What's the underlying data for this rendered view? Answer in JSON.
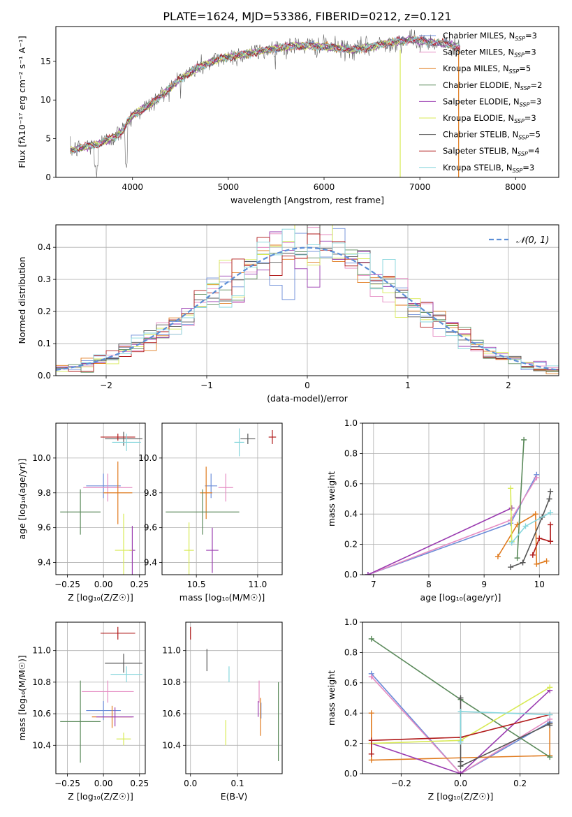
{
  "figure_title": "PLATE=1624, MJD=53386, FIBERID=0212, z=0.121",
  "models": [
    {
      "key": "CM",
      "label": "Chabrier MILES, N",
      "sub": "SSP",
      "suffix": "=3",
      "color": "#6b8cd8"
    },
    {
      "key": "SM",
      "label": "Salpeter MILES, N",
      "sub": "SSP",
      "suffix": "=3",
      "color": "#e58bc2"
    },
    {
      "key": "KM",
      "label": "Kroupa MILES, N",
      "sub": "SSP",
      "suffix": "=5",
      "color": "#e07b1f"
    },
    {
      "key": "CE",
      "label": "Chabrier ELODIE, N",
      "sub": "SSP",
      "suffix": "=2",
      "color": "#5b8a5b"
    },
    {
      "key": "SE",
      "label": "Salpeter ELODIE, N",
      "sub": "SSP",
      "suffix": "=3",
      "color": "#9a3bb0"
    },
    {
      "key": "KE",
      "label": "Kroupa ELODIE, N",
      "sub": "SSP",
      "suffix": "=3",
      "color": "#d8ea55"
    },
    {
      "key": "CS",
      "label": "Chabrier STELIB, N",
      "sub": "SSP",
      "suffix": "=5",
      "color": "#555555"
    },
    {
      "key": "SS",
      "label": "Salpeter STELIB, N",
      "sub": "SSP",
      "suffix": "=4",
      "color": "#b01a1a"
    },
    {
      "key": "KS",
      "label": "Kroupa STELIB, N",
      "sub": "SSP",
      "suffix": "=3",
      "color": "#86d6dc"
    }
  ],
  "chart_data": [
    {
      "id": "spectrum",
      "type": "line",
      "xlabel": "wavelength [Angstrom, rest frame]",
      "ylabel": "Flux [fλ10⁻¹⁷ erg cm⁻² s⁻¹ A⁻¹]",
      "xlim": [
        3200,
        8450
      ],
      "ylim": [
        0,
        19.5
      ],
      "xticks": [
        4000,
        5000,
        6000,
        7000,
        8000
      ],
      "yticks": [
        0,
        5,
        10,
        15
      ],
      "continuum": {
        "x": [
          3350,
          3500,
          3650,
          3800,
          3900,
          3950,
          4000,
          4100,
          4200,
          4300,
          4400,
          4500,
          4700,
          4900,
          5100,
          5300,
          5500,
          5700,
          5900,
          6100,
          6300,
          6500,
          6700,
          6900,
          7100,
          7300,
          7420
        ],
        "y": [
          3.5,
          3.9,
          4.3,
          5.2,
          6.0,
          7.2,
          8.0,
          8.8,
          9.5,
          10.6,
          11.6,
          12.8,
          14.3,
          15.3,
          15.8,
          16.2,
          16.7,
          17.0,
          17.0,
          16.8,
          16.5,
          16.9,
          17.5,
          17.8,
          17.5,
          17.2,
          16.8
        ]
      },
      "dropouts": [
        {
          "x": 6795,
          "color": "#d8ea55"
        },
        {
          "x": 7405,
          "color": "#e07b1f"
        }
      ]
    },
    {
      "id": "residuals",
      "type": "histogram",
      "xlabel": "(data-model)/error",
      "ylabel": "Normed distribution",
      "xlim": [
        -2.5,
        2.5
      ],
      "ylim": [
        0,
        0.47
      ],
      "xticks": [
        -2,
        -1,
        0,
        1,
        2
      ],
      "yticks": [
        0.0,
        0.1,
        0.2,
        0.3,
        0.4
      ],
      "bins": 40,
      "gaussian_label": "𝒩(0, 1)",
      "gaussian_color": "#5b8ed6"
    },
    {
      "id": "age_vs_Z",
      "type": "scatter",
      "xlabel": "Z [log₁₀(Z/Z☉)]",
      "ylabel": "age  [log₁₀(age/yr)]",
      "xlim": [
        -0.33,
        0.29
      ],
      "ylim": [
        9.33,
        10.2
      ],
      "xticks": [
        -0.25,
        0.0,
        0.25
      ],
      "xticklabels": [
        "−0.25",
        "0.00",
        "0.25"
      ],
      "yticks": [
        9.4,
        9.6,
        9.8,
        10.0
      ],
      "points": [
        {
          "m": "CM",
          "x": 0.0,
          "y": 9.84,
          "xerr": 0.12,
          "yerr": 0.07
        },
        {
          "m": "SM",
          "x": 0.03,
          "y": 9.83,
          "xerr": 0.17,
          "yerr": 0.08
        },
        {
          "m": "KM",
          "x": 0.1,
          "y": 9.8,
          "xerr": 0.1,
          "yerr": 0.18
        },
        {
          "m": "CE",
          "x": -0.16,
          "y": 9.69,
          "xerr": 0.14,
          "yerr": 0.13
        },
        {
          "m": "SE",
          "x": 0.2,
          "y": 9.47,
          "xerr": 0.02,
          "yerr": 0.14
        },
        {
          "m": "KE",
          "x": 0.14,
          "y": 9.47,
          "xerr": 0.06,
          "yerr": 0.21
        },
        {
          "m": "CS",
          "x": 0.14,
          "y": 10.11,
          "xerr": 0.13,
          "yerr": 0.04
        },
        {
          "m": "SS",
          "x": 0.1,
          "y": 10.12,
          "xerr": 0.12,
          "yerr": 0.02
        },
        {
          "m": "KS",
          "x": 0.16,
          "y": 10.09,
          "xerr": 0.1,
          "yerr": 0.05
        }
      ]
    },
    {
      "id": "age_vs_mass",
      "type": "scatter",
      "xlabel": "mass [log₁₀(M/M☉)]",
      "ylabel": "",
      "xlim": [
        10.22,
        11.2
      ],
      "ylim": [
        9.33,
        10.2
      ],
      "xticks": [
        10.5,
        11.0
      ],
      "xticklabels": [
        "10.5",
        "11.0"
      ],
      "yticks": [
        9.4,
        9.6,
        9.8,
        10.0
      ],
      "points": [
        {
          "m": "CM",
          "x": 10.62,
          "y": 9.84,
          "xerr": 0.05,
          "yerr": 0.07
        },
        {
          "m": "SM",
          "x": 10.74,
          "y": 9.83,
          "xerr": 0.06,
          "yerr": 0.08
        },
        {
          "m": "KM",
          "x": 10.58,
          "y": 9.8,
          "xerr": 0.05,
          "yerr": 0.15
        },
        {
          "m": "CE",
          "x": 10.55,
          "y": 9.69,
          "xerr": 0.3,
          "yerr": 0.13
        },
        {
          "m": "SE",
          "x": 10.63,
          "y": 9.47,
          "xerr": 0.05,
          "yerr": 0.13
        },
        {
          "m": "KE",
          "x": 10.44,
          "y": 9.47,
          "xerr": 0.04,
          "yerr": 0.16
        },
        {
          "m": "CS",
          "x": 10.92,
          "y": 10.11,
          "xerr": 0.06,
          "yerr": 0.03
        },
        {
          "m": "SS",
          "x": 11.12,
          "y": 10.12,
          "xerr": 0.03,
          "yerr": 0.04
        },
        {
          "m": "KS",
          "x": 10.85,
          "y": 10.09,
          "xerr": 0.04,
          "yerr": 0.08
        }
      ]
    },
    {
      "id": "weight_vs_age",
      "type": "line",
      "xlabel": "age  [log₁₀(age/yr)]",
      "ylabel": "mass weight",
      "xlim": [
        6.8,
        10.35
      ],
      "ylim": [
        0,
        1.0
      ],
      "xticks": [
        7,
        8,
        9,
        10
      ],
      "yticks": [
        0.0,
        0.2,
        0.4,
        0.6,
        0.8,
        1.0
      ],
      "series": [
        {
          "m": "CM",
          "x": [
            6.9,
            9.48,
            9.95
          ],
          "y": [
            0.0,
            0.34,
            0.66
          ]
        },
        {
          "m": "SM",
          "x": [
            6.9,
            9.48,
            9.95
          ],
          "y": [
            0.0,
            0.36,
            0.64
          ]
        },
        {
          "m": "KM",
          "x": [
            9.25,
            9.6,
            9.93,
            9.95,
            10.13
          ],
          "y": [
            0.12,
            0.33,
            0.4,
            0.07,
            0.09
          ]
        },
        {
          "m": "CE",
          "x": [
            9.6,
            9.72
          ],
          "y": [
            0.11,
            0.89
          ]
        },
        {
          "m": "SE",
          "x": [
            6.9,
            9.5
          ],
          "y": [
            0.0,
            0.44
          ]
        },
        {
          "m": "KE",
          "x": [
            9.48,
            9.5
          ],
          "y": [
            0.57,
            0.22
          ]
        },
        {
          "m": "CS",
          "x": [
            9.48,
            9.7,
            10.05,
            10.18,
            10.2
          ],
          "y": [
            0.05,
            0.08,
            0.38,
            0.5,
            0.55
          ]
        },
        {
          "m": "SS",
          "x": [
            9.88,
            10.0,
            10.2,
            10.2
          ],
          "y": [
            0.13,
            0.24,
            0.22,
            0.33
          ]
        },
        {
          "m": "KS",
          "x": [
            9.5,
            9.75,
            10.2
          ],
          "y": [
            0.21,
            0.32,
            0.41
          ]
        }
      ]
    },
    {
      "id": "mass_vs_Z",
      "type": "scatter",
      "xlabel": "Z [log₁₀(Z/Z☉)]",
      "ylabel": "mass [log₁₀(M/M☉)]",
      "xlim": [
        -0.33,
        0.29
      ],
      "ylim": [
        10.22,
        11.18
      ],
      "xticks": [
        -0.25,
        0.0,
        0.25
      ],
      "xticklabels": [
        "−0.25",
        "0.00",
        "0.25"
      ],
      "yticks": [
        10.4,
        10.6,
        10.8,
        11.0
      ],
      "points": [
        {
          "m": "CM",
          "x": 0.0,
          "y": 10.62,
          "xerr": 0.12,
          "yerr": 0.06
        },
        {
          "m": "SM",
          "x": 0.03,
          "y": 10.74,
          "xerr": 0.18,
          "yerr": 0.07
        },
        {
          "m": "KM",
          "x": 0.06,
          "y": 10.58,
          "xerr": 0.14,
          "yerr": 0.07
        },
        {
          "m": "CE",
          "x": -0.16,
          "y": 10.55,
          "xerr": 0.14,
          "yerr": 0.26
        },
        {
          "m": "SE",
          "x": 0.08,
          "y": 10.58,
          "xerr": 0.13,
          "yerr": 0.06
        },
        {
          "m": "KE",
          "x": 0.14,
          "y": 10.44,
          "xerr": 0.05,
          "yerr": 0.04
        },
        {
          "m": "CS",
          "x": 0.14,
          "y": 10.92,
          "xerr": 0.13,
          "yerr": 0.06
        },
        {
          "m": "SS",
          "x": 0.1,
          "y": 11.11,
          "xerr": 0.12,
          "yerr": 0.04
        },
        {
          "m": "KS",
          "x": 0.16,
          "y": 10.85,
          "xerr": 0.11,
          "yerr": 0.05
        }
      ]
    },
    {
      "id": "mass_vs_ebv",
      "type": "scatter",
      "xlabel": "E(B-V)",
      "ylabel": "",
      "xlim": [
        -0.01,
        0.195
      ],
      "ylim": [
        10.22,
        11.18
      ],
      "xticks": [
        0.0,
        0.1
      ],
      "xticklabels": [
        "0.0",
        "0.1"
      ],
      "yticks": [
        10.4,
        10.6,
        10.8,
        11.0
      ],
      "points": [
        {
          "m": "CM",
          "x": 0.15,
          "y": 10.62,
          "xerr": 0.0,
          "yerr": 0.05
        },
        {
          "m": "SM",
          "x": 0.146,
          "y": 10.74,
          "xerr": 0.0,
          "yerr": 0.07
        },
        {
          "m": "KM",
          "x": 0.149,
          "y": 10.58,
          "xerr": 0.0,
          "yerr": 0.12
        },
        {
          "m": "CE",
          "x": 0.187,
          "y": 10.55,
          "xerr": 0.0,
          "yerr": 0.25
        },
        {
          "m": "SE",
          "x": 0.144,
          "y": 10.63,
          "xerr": 0.0,
          "yerr": 0.05
        },
        {
          "m": "KE",
          "x": 0.075,
          "y": 10.48,
          "xerr": 0.0,
          "yerr": 0.08
        },
        {
          "m": "CS",
          "x": 0.035,
          "y": 10.94,
          "xerr": 0.0,
          "yerr": 0.07
        },
        {
          "m": "SS",
          "x": 0.0,
          "y": 11.11,
          "xerr": 0.0,
          "yerr": 0.04
        },
        {
          "m": "KS",
          "x": 0.082,
          "y": 10.85,
          "xerr": 0.0,
          "yerr": 0.05
        }
      ]
    },
    {
      "id": "weight_vs_Z",
      "type": "line",
      "xlabel": "Z [log₁₀(Z/Z☉)]",
      "ylabel": "mass weight",
      "xlim": [
        -0.33,
        0.33
      ],
      "ylim": [
        0,
        1.0
      ],
      "xticks": [
        -0.2,
        0.0,
        0.2
      ],
      "xticklabels": [
        "−0.2",
        "0.0",
        "0.2"
      ],
      "yticks": [
        0.0,
        0.2,
        0.4,
        0.6,
        0.8,
        1.0
      ],
      "series": [
        {
          "m": "CM",
          "x": [
            -0.3,
            0.0,
            0.3
          ],
          "y": [
            0.66,
            0.0,
            0.34
          ]
        },
        {
          "m": "SM",
          "x": [
            -0.3,
            0.0,
            0.3
          ],
          "y": [
            0.64,
            0.0,
            0.36
          ]
        },
        {
          "m": "KM",
          "x": [
            -0.3,
            -0.3,
            0.3,
            0.3
          ],
          "y": [
            0.4,
            0.09,
            0.12,
            0.33
          ]
        },
        {
          "m": "CE",
          "x": [
            -0.3,
            0.0,
            0.3
          ],
          "y": [
            0.89,
            0.49,
            0.11
          ]
        },
        {
          "m": "SE",
          "x": [
            -0.3,
            0.0,
            0.3
          ],
          "y": [
            0.2,
            0.0,
            0.55
          ]
        },
        {
          "m": "KE",
          "x": [
            -0.3,
            0.0,
            0.3
          ],
          "y": [
            0.2,
            0.22,
            0.57
          ]
        },
        {
          "m": "CS",
          "x": [
            0.0,
            0.0,
            0.0,
            0.3,
            0.3
          ],
          "y": [
            0.5,
            0.08,
            0.05,
            0.33,
            0.32
          ]
        },
        {
          "m": "SS",
          "x": [
            -0.3,
            -0.3,
            0.0,
            0.3
          ],
          "y": [
            0.13,
            0.22,
            0.24,
            0.39
          ]
        },
        {
          "m": "KS",
          "x": [
            0.0,
            0.0,
            0.3
          ],
          "y": [
            0.21,
            0.41,
            0.39
          ]
        }
      ]
    }
  ]
}
